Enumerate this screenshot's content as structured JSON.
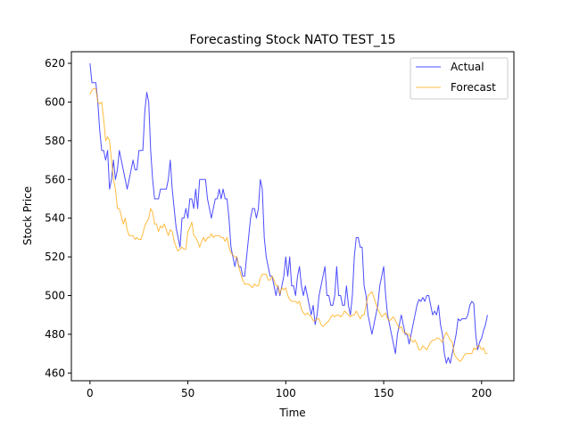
{
  "chart_data": {
    "type": "line",
    "title": "Forecasting Stock NATO TEST_15",
    "xlabel": "Time",
    "ylabel": "Stock Price",
    "xlim": [
      -9.5,
      216.5
    ],
    "ylim": [
      456,
      626
    ],
    "xticks": [
      0,
      50,
      100,
      150,
      200
    ],
    "yticks": [
      460,
      480,
      500,
      520,
      540,
      560,
      580,
      600,
      620
    ],
    "grid": false,
    "legend_position": "top-right",
    "series": [
      {
        "name": "Actual",
        "color": "#0000ff",
        "values": [
          620,
          610,
          610,
          610,
          600,
          585,
          575,
          575,
          570,
          575,
          555,
          560,
          570,
          560,
          565,
          575,
          570,
          565,
          560,
          555,
          560,
          565,
          570,
          565,
          565,
          575,
          575,
          575,
          595,
          605,
          600,
          575,
          560,
          550,
          550,
          550,
          555,
          555,
          555,
          555,
          560,
          570,
          555,
          545,
          535,
          530,
          525,
          540,
          540,
          545,
          540,
          550,
          550,
          545,
          555,
          545,
          560,
          560,
          560,
          560,
          550,
          545,
          540,
          545,
          550,
          550,
          555,
          550,
          555,
          550,
          550,
          540,
          525,
          520,
          515,
          520,
          515,
          515,
          510,
          510,
          520,
          530,
          540,
          545,
          545,
          540,
          545,
          560,
          555,
          530,
          520,
          515,
          510,
          510,
          505,
          500,
          505,
          500,
          505,
          510,
          520,
          510,
          520,
          505,
          505,
          500,
          510,
          515,
          505,
          500,
          505,
          500,
          495,
          490,
          495,
          485,
          490,
          500,
          505,
          510,
          515,
          500,
          500,
          495,
          495,
          500,
          515,
          500,
          500,
          495,
          495,
          505,
          495,
          490,
          500,
          520,
          530,
          530,
          525,
          525,
          505,
          500,
          490,
          485,
          480,
          485,
          490,
          495,
          505,
          510,
          515,
          500,
          490,
          485,
          480,
          475,
          470,
          480,
          485,
          490,
          485,
          480,
          480,
          475,
          480,
          485,
          490,
          495,
          498,
          497,
          499,
          497,
          500,
          500,
          495,
          490,
          492,
          490,
          495,
          485,
          480,
          470,
          465,
          468,
          465,
          470,
          475,
          480,
          488,
          487,
          488,
          488,
          488,
          490,
          495,
          497,
          496,
          480,
          472,
          476,
          478,
          482,
          485,
          490
        ]
      },
      {
        "name": "Forecast",
        "color": "#ffa500",
        "values": [
          604,
          606,
          607,
          607,
          600,
          599,
          600,
          591,
          580,
          582,
          580,
          570,
          560,
          555,
          545,
          545,
          541,
          537,
          540,
          534,
          531,
          531,
          531,
          529,
          530,
          529,
          529,
          532,
          536,
          538,
          540,
          545,
          543,
          537,
          537,
          533,
          536,
          535,
          537,
          534,
          531,
          534,
          533,
          528,
          525,
          523,
          524,
          525,
          524,
          524,
          533,
          535,
          538,
          531,
          530,
          528,
          525,
          528,
          530,
          528,
          530,
          530,
          532,
          530,
          531,
          531,
          531,
          530,
          530,
          528,
          530,
          525,
          522,
          521,
          520,
          520,
          515,
          511,
          508,
          506,
          506,
          506,
          505,
          504,
          506,
          505,
          505,
          509,
          511,
          511,
          511,
          508,
          508,
          510,
          508,
          505,
          505,
          501,
          504,
          503,
          504,
          500,
          498,
          497,
          497,
          497,
          496,
          497,
          493,
          491,
          490,
          491,
          490,
          489,
          487,
          487,
          488,
          488,
          485,
          484,
          485,
          486,
          487,
          489,
          490,
          489,
          490,
          490,
          489,
          490,
          492,
          491,
          490,
          489,
          490,
          490,
          492,
          490,
          488,
          490,
          490,
          495,
          500,
          501,
          502,
          499,
          496,
          493,
          491,
          489,
          490,
          491,
          488,
          487,
          488,
          489,
          487,
          485,
          483,
          484,
          481,
          481,
          480,
          480,
          477,
          476,
          477,
          475,
          472,
          472,
          474,
          473,
          472,
          474,
          476,
          477,
          477,
          478,
          478,
          477,
          476,
          479,
          481,
          479,
          477,
          476,
          470,
          468,
          467,
          466,
          467,
          469,
          470,
          470,
          470,
          470,
          473,
          472,
          474,
          474,
          472,
          473,
          470,
          470
        ]
      }
    ]
  }
}
